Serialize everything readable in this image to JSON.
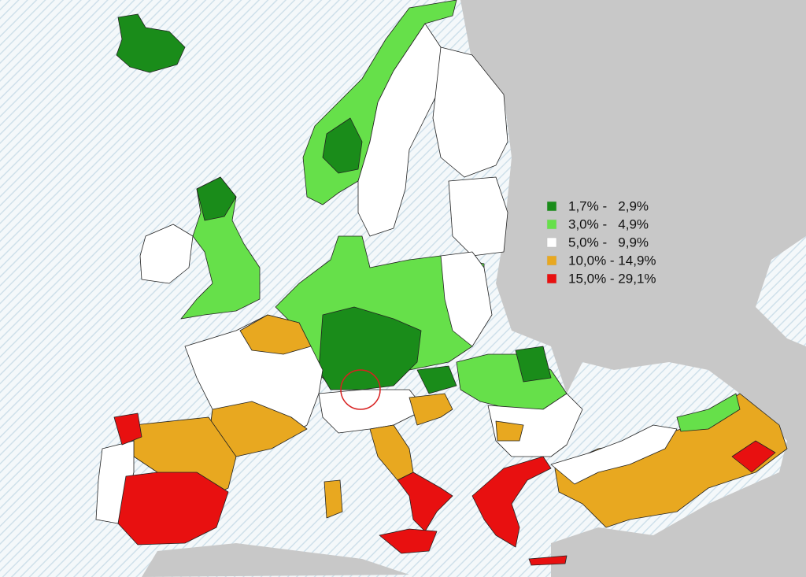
{
  "legend": {
    "items": [
      {
        "label": "1,7% -   2,9%",
        "color": "#1a8c1a"
      },
      {
        "label": "3,0% -   4,9%",
        "color": "#66e04a"
      },
      {
        "label": "5,0% -   9,9%",
        "color": "#ffffff"
      },
      {
        "label": "10,0% - 14,9%",
        "color": "#e8a820"
      },
      {
        "label": "15,0% - 29,1%",
        "color": "#e81010"
      }
    ]
  }
}
